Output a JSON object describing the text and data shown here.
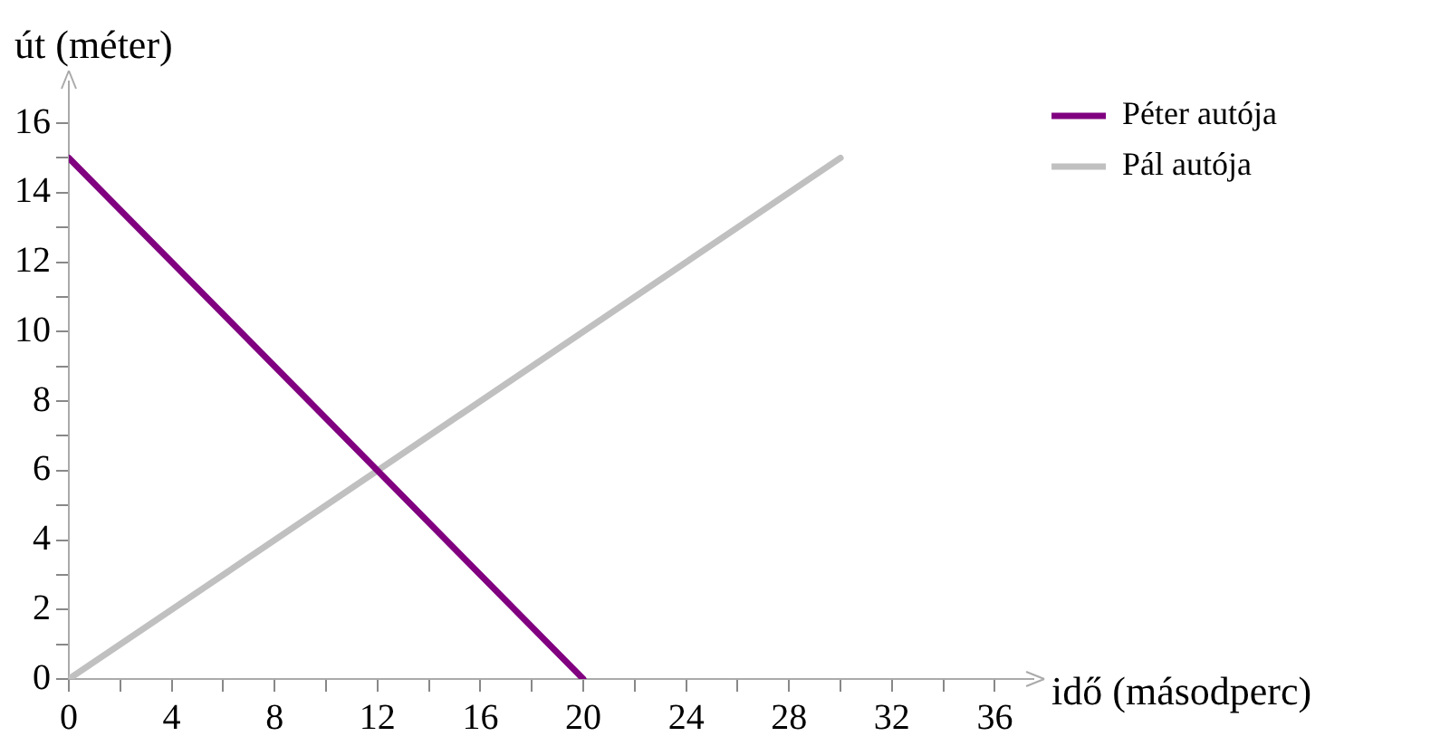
{
  "chart_data": {
    "type": "line",
    "xlabel": "idő (másodperc)",
    "ylabel": "út (méter)",
    "series": [
      {
        "name": "Péter autója",
        "color": "#800080",
        "x": [
          0,
          20
        ],
        "values": [
          15,
          0
        ]
      },
      {
        "name": "Pál autója",
        "color": "#c0c0c0",
        "x": [
          0,
          30
        ],
        "values": [
          0,
          15
        ]
      }
    ],
    "xlim": [
      0,
      37.5
    ],
    "xticks": [
      0,
      {
        "value": 2,
        "label": null
      },
      4,
      {
        "value": 6,
        "label": null
      },
      8,
      {
        "value": 10,
        "label": null
      },
      12,
      {
        "value": 14,
        "label": null
      },
      16,
      {
        "value": 18,
        "label": null
      },
      20,
      {
        "value": 22,
        "label": null
      },
      24,
      {
        "value": 26,
        "label": null
      },
      28,
      {
        "value": 30,
        "label": null
      },
      32,
      {
        "value": 34,
        "label": null
      },
      36
    ],
    "ylim": [
      0,
      17.2
    ],
    "yticks": [
      0,
      {
        "value": 1,
        "label": null
      },
      2,
      {
        "value": 3,
        "label": null
      },
      4,
      {
        "value": 5,
        "label": null
      },
      6,
      {
        "value": 7,
        "label": null
      },
      8,
      {
        "value": 9,
        "label": null
      },
      10,
      {
        "value": 11,
        "label": null
      },
      12,
      {
        "value": 13,
        "label": null
      },
      14,
      {
        "value": 15,
        "label": null
      },
      16
    ],
    "grid": false,
    "legend": "top right",
    "marker": "none",
    "line_style": "solid"
  }
}
